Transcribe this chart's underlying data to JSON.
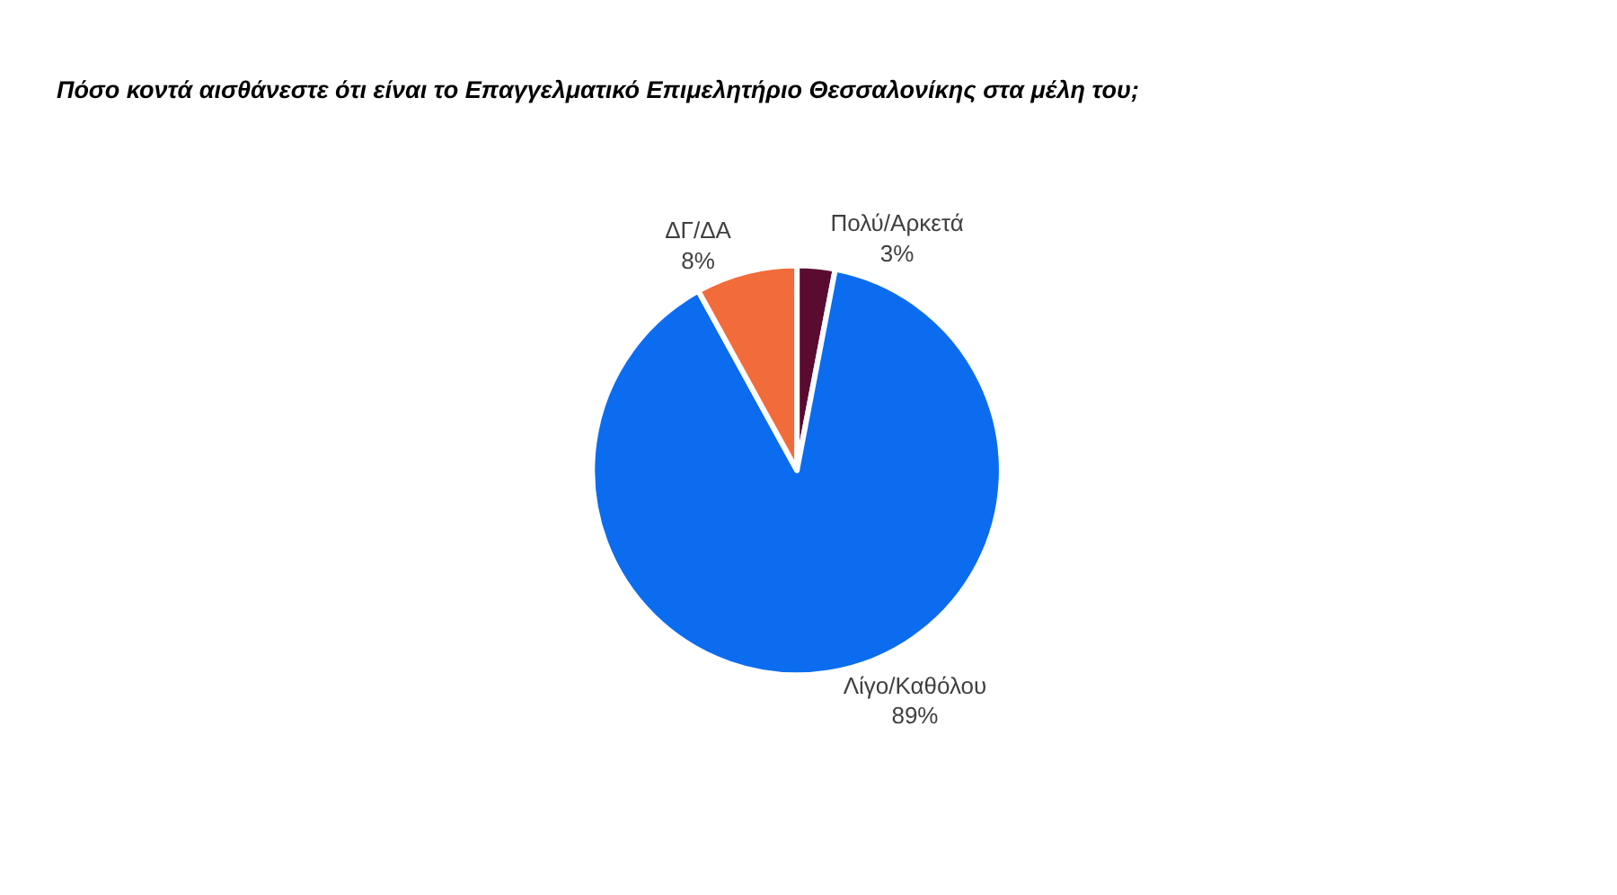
{
  "chart_data": {
    "type": "pie",
    "title": "Πόσο κοντά αισθάνεστε ότι είναι το Επαγγελματικό Επιμελητήριο Θεσσαλονίκης στα μέλη του;",
    "categories": [
      "Πολύ/Αρκετά",
      "Λίγο/Καθόλου",
      "ΔΓ/ΔΑ"
    ],
    "values": [
      3,
      89,
      8
    ],
    "value_labels": [
      "3%",
      "89%",
      "8%"
    ],
    "colors": [
      "#5c0b30",
      "#0b6cf0",
      "#f26b3a"
    ],
    "legend": false
  }
}
